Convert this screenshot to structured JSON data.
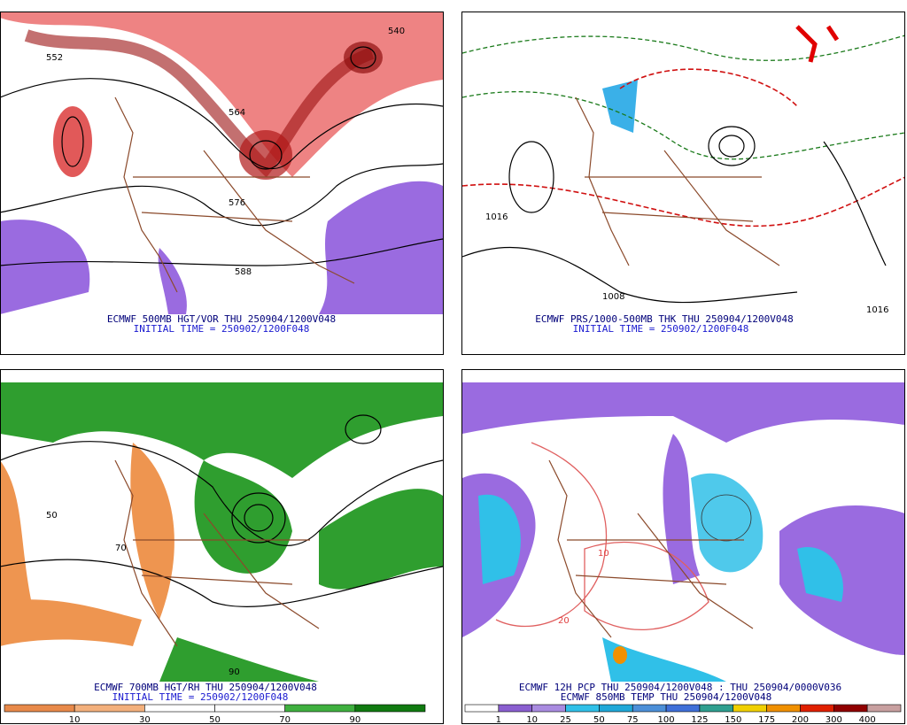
{
  "panels": [
    {
      "caption": [
        "ECMWF 500MB HGT/VOR THU 250904/1200V048",
        "INITIAL TIME = 250902/1200F048"
      ],
      "labels": [
        "552",
        "576",
        "588",
        "540",
        "564"
      ]
    },
    {
      "caption": [
        "ECMWF PRS/1000-500MB THK THU 250904/1200V048",
        "INITIAL TIME = 250902/1200F048"
      ],
      "labels": [
        "1016",
        "1008",
        "1016"
      ]
    },
    {
      "caption": [
        "ECMWF 700MB HGT/RH THU 250904/1200V048",
        "INITIAL TIME = 250902/1200F048"
      ],
      "labels": [
        "50",
        "90",
        "70"
      ],
      "colorbar": {
        "labels": [
          10,
          30,
          50,
          70,
          90
        ],
        "colors": [
          "#e8894a",
          "#f3b07c",
          "#ffffff",
          "#ffffff",
          "#3fb03f",
          "#107a10"
        ]
      }
    },
    {
      "caption": [
        "ECMWF 12H PCP THU 250904/1200V048 : THU 250904/0000V036",
        "ECMWF 850MB TEMP THU 250904/1200V048"
      ],
      "labels": [
        "20",
        "10"
      ],
      "colorbar": {
        "labels": [
          1,
          10,
          25,
          50,
          75,
          100,
          125,
          150,
          175,
          200,
          300,
          400
        ],
        "colors": [
          "#ffffff",
          "#8a5fd0",
          "#a98be0",
          "#30c0e8",
          "#20a8d8",
          "#4c8fd8",
          "#3f6fd8",
          "#2f9f8f",
          "#f0d000",
          "#f09000",
          "#e02000",
          "#900000",
          "#c8a0a0"
        ]
      }
    }
  ]
}
